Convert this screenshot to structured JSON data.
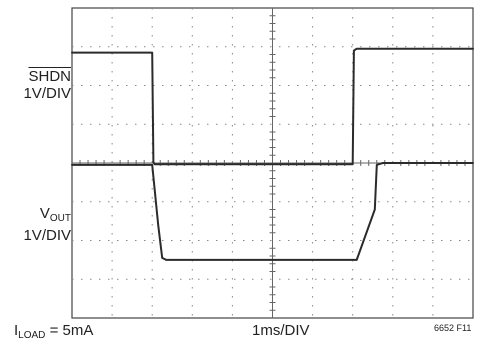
{
  "labels": {
    "ch1_name": "SHDN",
    "ch1_scale": "1V/DIV",
    "ch2_name_main": "V",
    "ch2_name_sub": "OUT",
    "ch2_scale": "1V/DIV",
    "load_main": "I",
    "load_sub": "LOAD",
    "load_value": " = 5mA",
    "timebase": "1ms/DIV",
    "figure_code": "6652 F11"
  },
  "chart_data": {
    "type": "line",
    "grid": true,
    "divisions": {
      "horizontal": 10,
      "vertical": 8
    },
    "x_unit": "ms",
    "xlim": [
      0,
      10
    ],
    "series": [
      {
        "name": "SHDN",
        "points": [
          [
            0,
            2.85
          ],
          [
            2.0,
            2.85
          ],
          [
            2.03,
            0.02
          ],
          [
            2.06,
            -0.03
          ],
          [
            7.0,
            -0.03
          ],
          [
            7.03,
            2.9
          ],
          [
            7.1,
            2.95
          ],
          [
            10,
            2.95
          ]
        ]
      },
      {
        "name": "VOUT",
        "points": [
          [
            0,
            -0.05
          ],
          [
            2.0,
            -0.05
          ],
          [
            2.15,
            -1.6
          ],
          [
            2.25,
            -2.45
          ],
          [
            2.35,
            -2.5
          ],
          [
            7.1,
            -2.5
          ],
          [
            7.55,
            -1.2
          ],
          [
            7.6,
            -0.05
          ],
          [
            7.75,
            0.0
          ],
          [
            10,
            0.0
          ]
        ]
      }
    ],
    "y_unit": "divisions from center",
    "ylim": [
      -4,
      4
    ]
  }
}
